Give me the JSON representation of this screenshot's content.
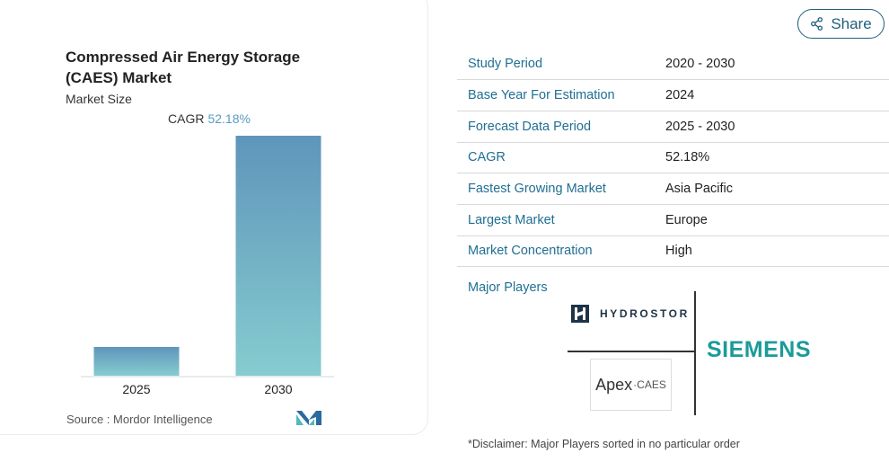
{
  "share_label": "Share",
  "chart_data": {
    "type": "bar",
    "title": "Compressed Air Energy Storage (CAES) Market",
    "subtitle": "Market Size",
    "cagr_label": "CAGR",
    "cagr_value": "52.18%",
    "categories": [
      "2025",
      "2030"
    ],
    "values": [
      12,
      100
    ],
    "ylim": [
      0,
      100
    ],
    "grid": false,
    "bar_color_top": "#5f95bb",
    "bar_color_bottom": "#86cccf",
    "source": "Source :  Mordor Intelligence"
  },
  "facts": [
    {
      "label": "Study Period",
      "value": "2020 - 2030"
    },
    {
      "label": "Base Year For Estimation",
      "value": "2024"
    },
    {
      "label": "Forecast Data Period",
      "value": "2025 - 2030"
    },
    {
      "label": "CAGR",
      "value": "52.18%"
    },
    {
      "label": "Fastest Growing Market",
      "value": "Asia Pacific"
    },
    {
      "label": "Largest Market",
      "value": "Europe"
    },
    {
      "label": "Market Concentration",
      "value": "High"
    }
  ],
  "major_players_label": "Major Players",
  "players": {
    "hydrostor": "HYDROSTOR",
    "siemens": "SIEMENS",
    "apex_main": "Apex",
    "apex_suffix": "·CAES"
  },
  "disclaimer": "*Disclaimer: Major Players sorted in no particular order",
  "colors": {
    "accent": "#1f6f93",
    "share_border": "#1e5f7a",
    "siemens": "#1d9a9a"
  }
}
